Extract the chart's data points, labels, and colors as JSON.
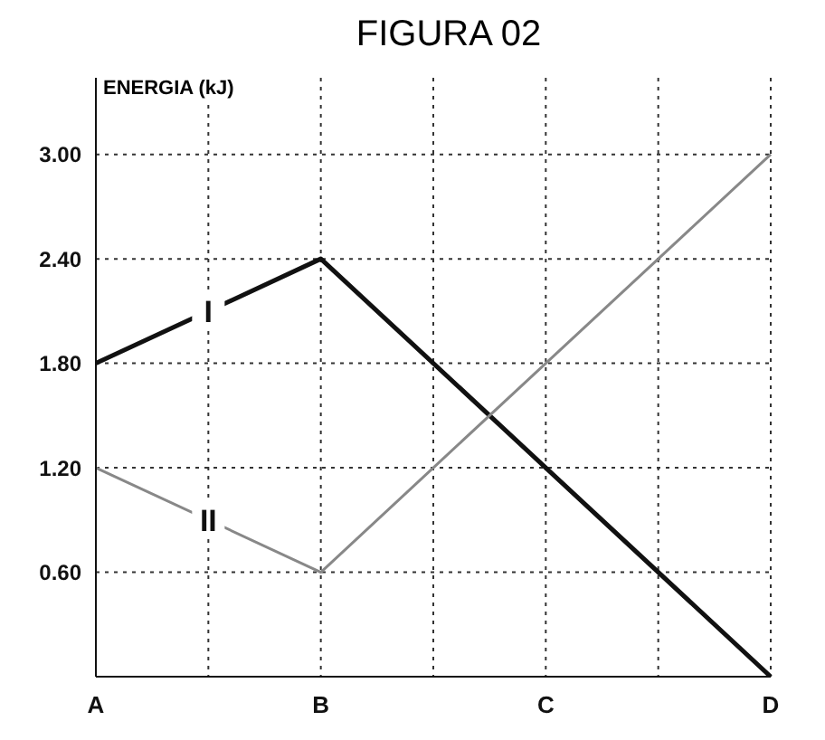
{
  "chart_data": {
    "type": "line",
    "title": "FIGURA 02",
    "ylabel": "ENERGIA (kJ)",
    "categories": [
      "A",
      "B",
      "C",
      "D"
    ],
    "series": [
      {
        "name": "I",
        "color": "#111111",
        "values": [
          1.8,
          2.4,
          1.2,
          0
        ]
      },
      {
        "name": "II",
        "color": "#888888",
        "values": [
          1.2,
          0.6,
          1.8,
          3.0
        ]
      }
    ],
    "ylim": [
      0,
      3.44
    ],
    "yticks": [
      {
        "value": 0.6,
        "label": "0.60"
      },
      {
        "value": 1.2,
        "label": "1.20"
      },
      {
        "value": 1.8,
        "label": "1.80"
      },
      {
        "value": 2.4,
        "label": "2.40"
      },
      {
        "value": 3.0,
        "label": "3.00"
      }
    ],
    "grid": true,
    "legend": false,
    "marker": "none",
    "line_style": "solid"
  }
}
